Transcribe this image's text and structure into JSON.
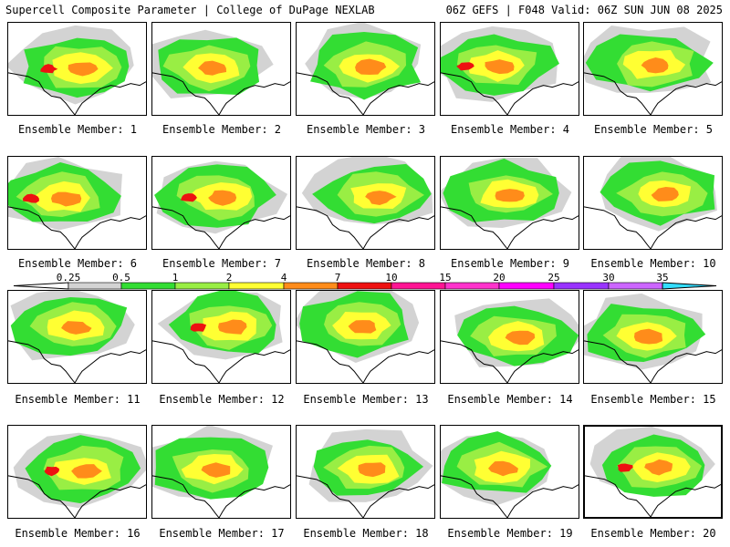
{
  "header": {
    "left": "Supercell Composite Parameter | College of DuPage NEXLAB",
    "right": "06Z GEFS | F048 Valid: 06Z SUN JUN 08 2025"
  },
  "members": [
    {
      "label": "Ensemble Member: 1",
      "selected": false
    },
    {
      "label": "Ensemble Member: 2",
      "selected": false
    },
    {
      "label": "Ensemble Member: 3",
      "selected": false
    },
    {
      "label": "Ensemble Member: 4",
      "selected": false
    },
    {
      "label": "Ensemble Member: 5",
      "selected": false
    },
    {
      "label": "Ensemble Member: 6",
      "selected": false
    },
    {
      "label": "Ensemble Member: 7",
      "selected": false
    },
    {
      "label": "Ensemble Member: 8",
      "selected": false
    },
    {
      "label": "Ensemble Member: 9",
      "selected": false
    },
    {
      "label": "Ensemble Member: 10",
      "selected": false
    },
    {
      "label": "Ensemble Member: 11",
      "selected": false
    },
    {
      "label": "Ensemble Member: 12",
      "selected": false
    },
    {
      "label": "Ensemble Member: 13",
      "selected": false
    },
    {
      "label": "Ensemble Member: 14",
      "selected": false
    },
    {
      "label": "Ensemble Member: 15",
      "selected": false
    },
    {
      "label": "Ensemble Member: 16",
      "selected": false
    },
    {
      "label": "Ensemble Member: 17",
      "selected": false
    },
    {
      "label": "Ensemble Member: 18",
      "selected": false
    },
    {
      "label": "Ensemble Member: 19",
      "selected": false
    },
    {
      "label": "Ensemble Member: 20",
      "selected": true
    }
  ],
  "legend": {
    "ticks": [
      "0.25",
      "0.5",
      "1",
      "2",
      "4",
      "7",
      "10",
      "15",
      "20",
      "25",
      "30",
      "35"
    ],
    "colors": [
      "#d3d3d3",
      "#33dd33",
      "#99ee44",
      "#ffff33",
      "#ff8c1a",
      "#ee1111",
      "#ff1493",
      "#ff33cc",
      "#ff00ff",
      "#9933ff",
      "#cc66ff",
      "#33ddff"
    ]
  },
  "colors": {
    "level1": "#d3d3d3",
    "level2": "#33dd33",
    "level3": "#99ee44",
    "level4": "#ffff33",
    "level5": "#ff8c1a",
    "level6": "#ee1111"
  }
}
